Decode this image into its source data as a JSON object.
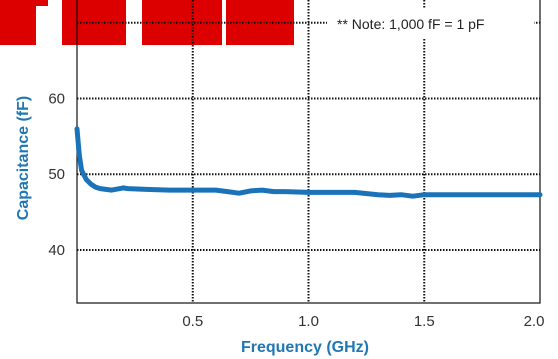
{
  "chart_data": {
    "type": "line",
    "title": "",
    "xlabel": "Frequency (GHz)",
    "ylabel": "Capacitance (fF)",
    "annotation": "** Note: 1,000 fF = 1 pF",
    "xlim": [
      0.0,
      2.0
    ],
    "ylim": [
      33,
      73
    ],
    "x_ticks": [
      0.5,
      1.0,
      1.5,
      2.0
    ],
    "x_tick_labels": [
      "0.5",
      "1.0",
      "1.5",
      "2.0"
    ],
    "y_ticks": [
      40,
      50,
      60,
      70
    ],
    "y_tick_labels": [
      "40",
      "50",
      "60",
      ""
    ],
    "grid": true,
    "series": [
      {
        "color": "#1a73b8",
        "x": [
          0.0,
          0.01,
          0.02,
          0.04,
          0.06,
          0.08,
          0.1,
          0.15,
          0.2,
          0.22,
          0.3,
          0.4,
          0.5,
          0.6,
          0.65,
          0.7,
          0.75,
          0.8,
          0.85,
          0.9,
          1.0,
          1.1,
          1.2,
          1.3,
          1.35,
          1.4,
          1.45,
          1.5,
          1.6,
          1.7,
          1.8,
          1.9,
          2.0
        ],
        "y": [
          56.0,
          52.5,
          50.5,
          49.3,
          48.7,
          48.3,
          48.1,
          47.9,
          48.2,
          48.1,
          48.0,
          47.9,
          47.9,
          47.9,
          47.7,
          47.5,
          47.8,
          47.9,
          47.7,
          47.7,
          47.6,
          47.6,
          47.6,
          47.3,
          47.2,
          47.3,
          47.1,
          47.3,
          47.3,
          47.3,
          47.3,
          47.3,
          47.3
        ]
      }
    ]
  },
  "colors": {
    "series": "#1a73b8",
    "axis_title": "#1f77b4",
    "logo_red": "#dd0000",
    "grid": "#111111"
  }
}
